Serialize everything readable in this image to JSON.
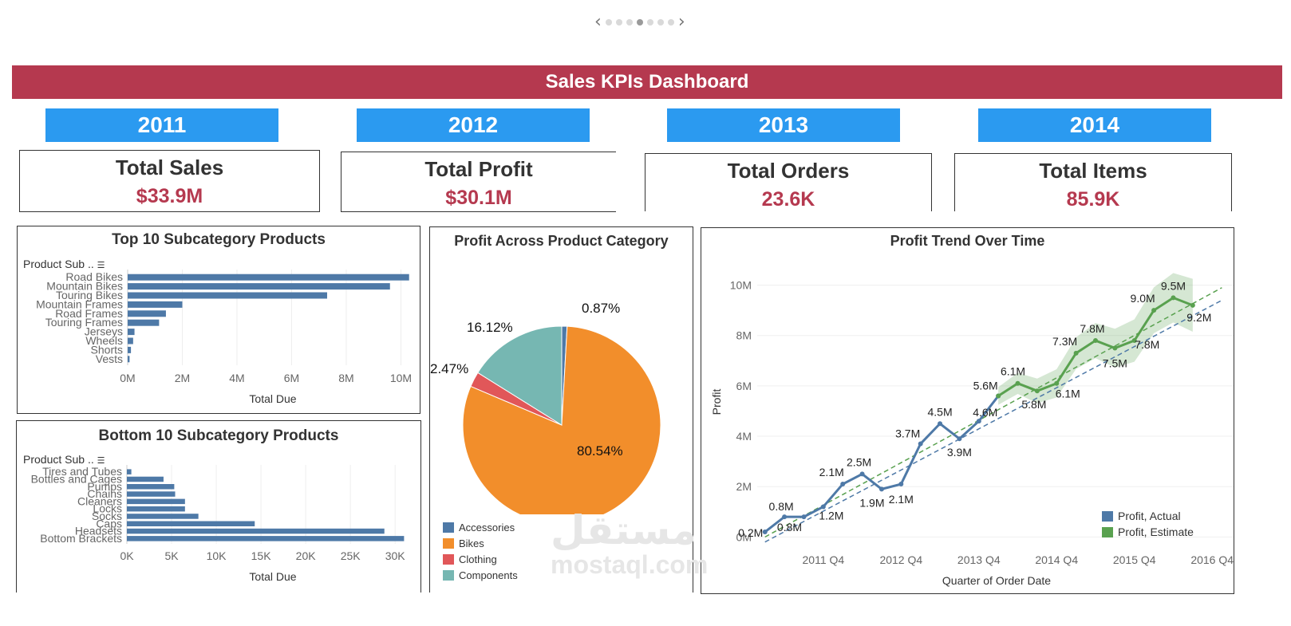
{
  "pager": {
    "prev_icon": "‹",
    "next_icon": "›",
    "dots": 7,
    "active": 3
  },
  "dashboard_title": "Sales KPIs Dashboard",
  "years": [
    "2011",
    "2012",
    "2013",
    "2014"
  ],
  "kpis": [
    {
      "label": "Total Sales",
      "value": "$33.9M"
    },
    {
      "label": "Total Profit",
      "value": "$30.1M"
    },
    {
      "label": "Total Orders",
      "value": "23.6K"
    },
    {
      "label": "Total Items",
      "value": "85.9K"
    }
  ],
  "colors": {
    "accent_red": "#b5394f",
    "year_blue": "#2b9af0",
    "bar_blue": "#4e79a7",
    "green": "#59a14f"
  },
  "top10": {
    "title": "Top 10 Subcategory Products",
    "field_label": "Product Sub ..",
    "xlabel": "Total Due"
  },
  "bottom10": {
    "title": "Bottom 10 Subcategory Products",
    "field_label": "Product Sub ..",
    "xlabel": "Total Due"
  },
  "pie": {
    "title": "Profit Across Product Category",
    "legend": [
      "Accessories",
      "Bikes",
      "Clothing",
      "Components"
    ]
  },
  "trend": {
    "title": "Profit Trend Over Time",
    "legend": [
      "Profit, Actual",
      "Profit, Estimate"
    ]
  },
  "watermark": {
    "arabic": "مستقل",
    "latin": "mostaql.com"
  },
  "chart_data": [
    {
      "type": "bar",
      "orientation": "horizontal",
      "title": "Top 10 Subcategory Products",
      "categories": [
        "Road Bikes",
        "Mountain Bikes",
        "Touring Bikes",
        "Mountain Frames",
        "Road Frames",
        "Touring Frames",
        "Jerseys",
        "Wheels",
        "Shorts",
        "Vests"
      ],
      "values": [
        10.3,
        9.6,
        7.3,
        2.0,
        1.4,
        1.15,
        0.25,
        0.2,
        0.12,
        0.07
      ],
      "xlabel": "Total Due",
      "ylabel": "Product Sub ..",
      "xlim": [
        0,
        10.6
      ],
      "xticks": [
        0,
        2,
        4,
        6,
        8,
        10
      ],
      "tick_labels": [
        "0M",
        "2M",
        "4M",
        "6M",
        "8M",
        "10M"
      ]
    },
    {
      "type": "bar",
      "orientation": "horizontal",
      "title": "Bottom 10 Subcategory Products",
      "categories": [
        "Tires and Tubes",
        "Bottles and Cages",
        "Pumps",
        "Chains",
        "Cleaners",
        "Locks",
        "Socks",
        "Caps",
        "Headsets",
        "Bottom Brackets"
      ],
      "values": [
        0.5,
        4.1,
        5.3,
        5.4,
        6.5,
        6.5,
        8.0,
        14.3,
        28.8,
        31.0
      ],
      "xlabel": "Total Due",
      "ylabel": "Product Sub ..",
      "xlim": [
        0,
        31.5
      ],
      "xticks": [
        0,
        5,
        10,
        15,
        20,
        25,
        30
      ],
      "tick_labels": [
        "0K",
        "5K",
        "10K",
        "15K",
        "20K",
        "25K",
        "30K"
      ]
    },
    {
      "type": "pie",
      "title": "Profit Across Product Category",
      "labels": [
        "Accessories",
        "Bikes",
        "Clothing",
        "Components"
      ],
      "values": [
        0.87,
        80.54,
        2.47,
        16.12
      ],
      "value_labels": [
        "0.87%",
        "80.54%",
        "2.47%",
        "16.12%"
      ],
      "colors": [
        "#4e79a7",
        "#f28e2b",
        "#e15759",
        "#76b7b2"
      ]
    },
    {
      "type": "line",
      "title": "Profit Trend Over Time",
      "xlabel": "Quarter of Order Date",
      "ylabel": "Profit",
      "ylim": [
        -0.4,
        11
      ],
      "yticks": [
        0,
        2,
        4,
        6,
        8,
        10
      ],
      "ytick_labels": [
        "0M",
        "2M",
        "4M",
        "6M",
        "8M",
        "10M"
      ],
      "xticks": [
        3,
        7,
        11,
        15,
        19,
        23
      ],
      "xtick_labels": [
        "2011 Q4",
        "2012 Q4",
        "2013 Q4",
        "2014 Q4",
        "2015 Q4",
        "2016 Q4"
      ],
      "series": [
        {
          "name": "Profit, Actual",
          "x": [
            0,
            1,
            2,
            3,
            4,
            5,
            6,
            7,
            8,
            9,
            10,
            11,
            12
          ],
          "y": [
            0.2,
            0.8,
            0.8,
            1.2,
            2.1,
            2.5,
            1.9,
            2.1,
            3.7,
            4.5,
            3.9,
            4.6,
            5.6
          ],
          "labels": [
            "0.2M",
            "0.8M",
            "0.8M",
            "1.2M",
            "2.1M",
            "2.5M",
            "1.9M",
            "2.1M",
            "3.7M",
            "4.5M",
            "3.9M",
            "4.6M",
            ""
          ]
        },
        {
          "name": "Profit, Estimate",
          "x": [
            12,
            13,
            14,
            15,
            16,
            17,
            18,
            19,
            20,
            21,
            22,
            23
          ],
          "y": [
            5.6,
            6.1,
            5.8,
            6.1,
            7.3,
            7.8,
            7.5,
            7.8,
            9.0,
            9.5,
            9.2,
            null
          ],
          "labels": [
            "5.6M",
            "6.1M",
            "5.8M",
            "6.1M",
            "7.3M",
            "7.8M",
            "7.5M",
            "7.8M",
            "9.0M",
            "9.5M",
            "9.2M",
            ""
          ]
        }
      ],
      "trend_lines": [
        {
          "name": "Actual trend",
          "x": [
            0,
            23.5
          ],
          "y": [
            -0.2,
            9.4
          ]
        },
        {
          "name": "Estimate trend",
          "x": [
            0,
            23.5
          ],
          "y": [
            0.0,
            9.9
          ]
        }
      ]
    }
  ]
}
